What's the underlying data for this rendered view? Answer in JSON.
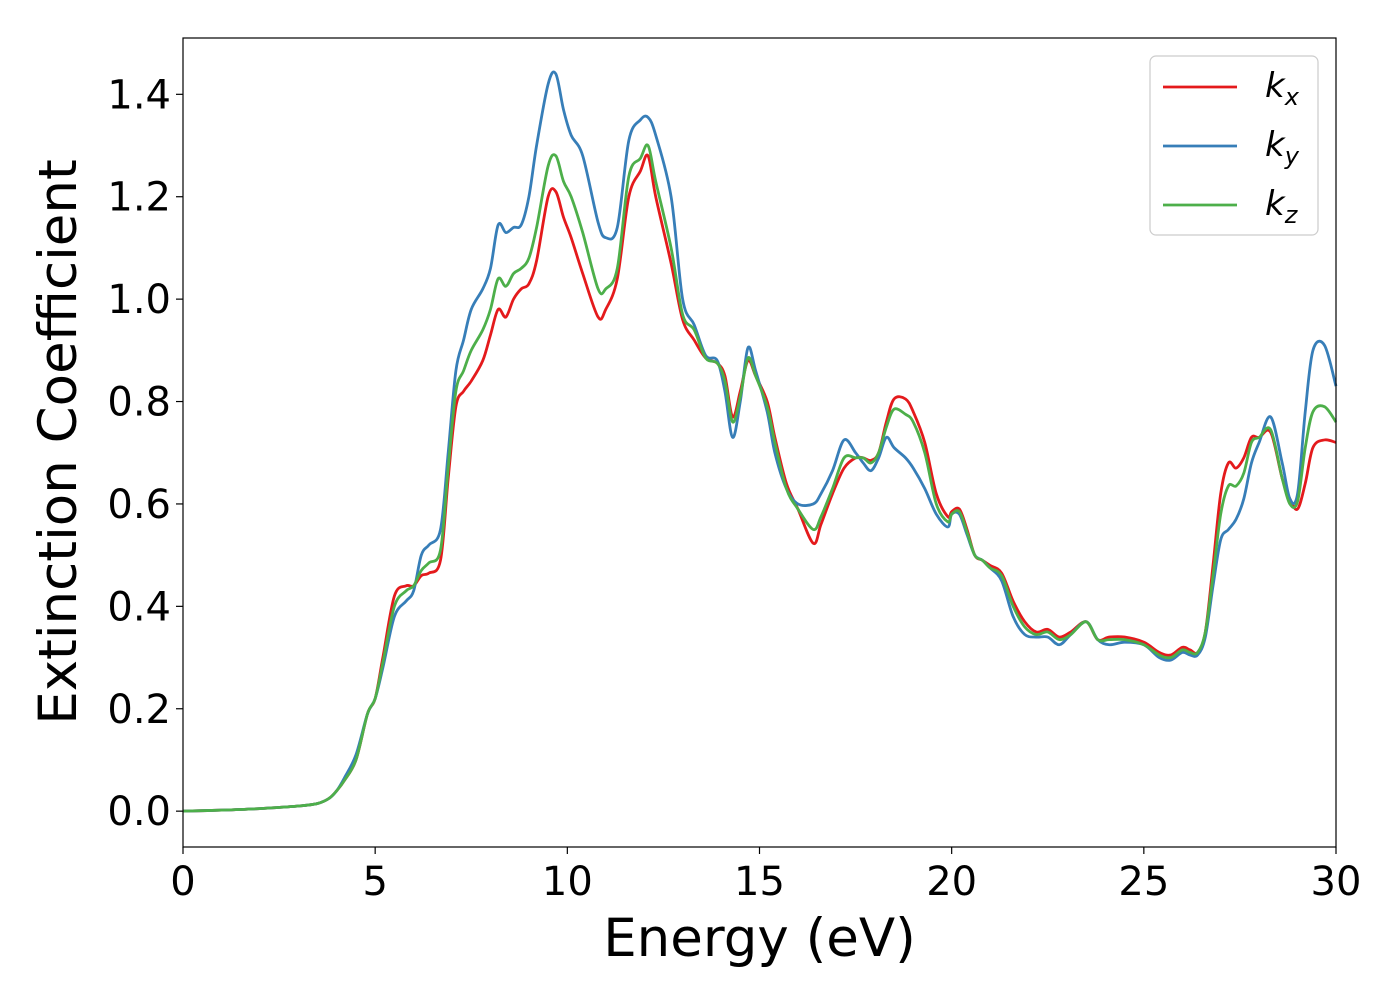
{
  "chart_data": {
    "type": "line",
    "xlabel": "Energy (eV)",
    "ylabel": "Extinction Coefficient",
    "xlim": [
      0,
      30
    ],
    "ylim": [
      -0.07,
      1.51
    ],
    "xticks": [
      "0",
      "5",
      "10",
      "15",
      "20",
      "25",
      "30"
    ],
    "yticks": [
      "0.0",
      "0.2",
      "0.4",
      "0.6",
      "0.8",
      "1.0",
      "1.2",
      "1.4"
    ],
    "grid": false,
    "legend_position": "top-right",
    "series": [
      {
        "name": "k",
        "subscript": "x",
        "color": "#e41a1c",
        "x": [
          0,
          1,
          2,
          3,
          3.5,
          3.8,
          4.0,
          4.2,
          4.5,
          4.8,
          5.0,
          5.2,
          5.5,
          5.8,
          6.0,
          6.2,
          6.4,
          6.7,
          6.9,
          7.1,
          7.3,
          7.5,
          7.8,
          8.0,
          8.2,
          8.4,
          8.6,
          8.8,
          9.0,
          9.2,
          9.5,
          9.7,
          9.9,
          10.1,
          10.4,
          10.8,
          11.0,
          11.3,
          11.6,
          11.9,
          12.1,
          12.3,
          12.7,
          13.0,
          13.3,
          13.6,
          13.9,
          14.1,
          14.3,
          14.5,
          14.7,
          14.9,
          15.2,
          15.4,
          15.7,
          16.0,
          16.4,
          16.6,
          16.9,
          17.2,
          17.5,
          17.7,
          17.9,
          18.1,
          18.3,
          18.5,
          18.8,
          19.0,
          19.3,
          19.6,
          19.9,
          20.0,
          20.2,
          20.4,
          20.6,
          20.8,
          21.0,
          21.3,
          21.6,
          21.9,
          22.2,
          22.5,
          22.8,
          23.1,
          23.5,
          23.8,
          24.1,
          24.5,
          25.0,
          25.4,
          25.7,
          26.0,
          26.2,
          26.4,
          26.6,
          26.8,
          27.0,
          27.2,
          27.4,
          27.6,
          27.8,
          28.0,
          28.3,
          28.6,
          28.8,
          29.0,
          29.2,
          29.4,
          29.7,
          30.0
        ],
        "values": [
          0,
          0.002,
          0.005,
          0.01,
          0.015,
          0.025,
          0.04,
          0.06,
          0.1,
          0.19,
          0.22,
          0.3,
          0.42,
          0.44,
          0.44,
          0.46,
          0.465,
          0.49,
          0.65,
          0.79,
          0.82,
          0.84,
          0.88,
          0.93,
          0.98,
          0.965,
          1.0,
          1.02,
          1.03,
          1.075,
          1.2,
          1.21,
          1.16,
          1.12,
          1.05,
          0.965,
          0.98,
          1.04,
          1.2,
          1.25,
          1.28,
          1.2,
          1.07,
          0.96,
          0.92,
          0.885,
          0.875,
          0.85,
          0.77,
          0.82,
          0.88,
          0.85,
          0.8,
          0.73,
          0.64,
          0.59,
          0.523,
          0.56,
          0.62,
          0.67,
          0.69,
          0.69,
          0.685,
          0.7,
          0.76,
          0.805,
          0.805,
          0.78,
          0.72,
          0.62,
          0.575,
          0.585,
          0.59,
          0.55,
          0.5,
          0.49,
          0.48,
          0.465,
          0.41,
          0.37,
          0.35,
          0.355,
          0.34,
          0.35,
          0.37,
          0.335,
          0.34,
          0.34,
          0.33,
          0.31,
          0.305,
          0.32,
          0.315,
          0.31,
          0.35,
          0.48,
          0.62,
          0.68,
          0.67,
          0.69,
          0.73,
          0.73,
          0.74,
          0.65,
          0.61,
          0.59,
          0.64,
          0.71,
          0.725,
          0.72
        ]
      },
      {
        "name": "k",
        "subscript": "y",
        "color": "#377eb8",
        "x": [
          0,
          1,
          2,
          3,
          3.5,
          3.8,
          4.0,
          4.2,
          4.5,
          4.8,
          5.0,
          5.2,
          5.5,
          5.8,
          6.0,
          6.2,
          6.4,
          6.7,
          6.9,
          7.1,
          7.3,
          7.5,
          7.8,
          8.0,
          8.2,
          8.4,
          8.6,
          8.8,
          9.0,
          9.2,
          9.5,
          9.7,
          9.9,
          10.1,
          10.4,
          10.8,
          11.0,
          11.3,
          11.6,
          11.9,
          12.1,
          12.3,
          12.7,
          13.0,
          13.3,
          13.6,
          13.9,
          14.1,
          14.3,
          14.5,
          14.7,
          14.9,
          15.2,
          15.4,
          15.7,
          16.0,
          16.4,
          16.6,
          16.9,
          17.2,
          17.5,
          17.7,
          17.9,
          18.1,
          18.3,
          18.5,
          18.8,
          19.0,
          19.3,
          19.6,
          19.9,
          20.0,
          20.2,
          20.4,
          20.6,
          20.8,
          21.0,
          21.3,
          21.6,
          21.9,
          22.2,
          22.5,
          22.8,
          23.1,
          23.5,
          23.8,
          24.1,
          24.5,
          25.0,
          25.4,
          25.7,
          26.0,
          26.2,
          26.4,
          26.6,
          26.8,
          27.0,
          27.2,
          27.4,
          27.6,
          27.8,
          28.0,
          28.3,
          28.6,
          28.8,
          29.0,
          29.2,
          29.4,
          29.7,
          30.0
        ],
        "values": [
          0,
          0.002,
          0.005,
          0.01,
          0.015,
          0.025,
          0.04,
          0.065,
          0.11,
          0.19,
          0.22,
          0.28,
          0.38,
          0.41,
          0.43,
          0.5,
          0.52,
          0.55,
          0.7,
          0.86,
          0.92,
          0.98,
          1.02,
          1.06,
          1.145,
          1.13,
          1.14,
          1.145,
          1.2,
          1.3,
          1.42,
          1.44,
          1.37,
          1.32,
          1.28,
          1.15,
          1.12,
          1.14,
          1.31,
          1.35,
          1.355,
          1.32,
          1.2,
          1.0,
          0.95,
          0.89,
          0.88,
          0.82,
          0.73,
          0.8,
          0.905,
          0.86,
          0.78,
          0.7,
          0.63,
          0.6,
          0.6,
          0.62,
          0.665,
          0.725,
          0.7,
          0.68,
          0.665,
          0.69,
          0.73,
          0.71,
          0.69,
          0.67,
          0.63,
          0.58,
          0.555,
          0.58,
          0.58,
          0.54,
          0.5,
          0.49,
          0.475,
          0.45,
          0.38,
          0.345,
          0.34,
          0.34,
          0.325,
          0.345,
          0.37,
          0.335,
          0.325,
          0.33,
          0.325,
          0.3,
          0.295,
          0.31,
          0.305,
          0.305,
          0.34,
          0.44,
          0.53,
          0.55,
          0.57,
          0.61,
          0.68,
          0.72,
          0.77,
          0.68,
          0.61,
          0.62,
          0.78,
          0.9,
          0.91,
          0.83
        ]
      },
      {
        "name": "k",
        "subscript": "z",
        "color": "#4daf4a",
        "x": [
          0,
          1,
          2,
          3,
          3.5,
          3.8,
          4.0,
          4.2,
          4.5,
          4.8,
          5.0,
          5.2,
          5.5,
          5.8,
          6.0,
          6.2,
          6.4,
          6.7,
          6.9,
          7.1,
          7.3,
          7.5,
          7.8,
          8.0,
          8.2,
          8.4,
          8.6,
          8.8,
          9.0,
          9.2,
          9.5,
          9.7,
          9.9,
          10.1,
          10.4,
          10.8,
          11.0,
          11.3,
          11.6,
          11.9,
          12.1,
          12.3,
          12.7,
          13.0,
          13.3,
          13.6,
          13.9,
          14.1,
          14.3,
          14.5,
          14.7,
          14.9,
          15.2,
          15.4,
          15.7,
          16.0,
          16.4,
          16.6,
          16.9,
          17.2,
          17.5,
          17.7,
          17.9,
          18.1,
          18.3,
          18.5,
          18.8,
          19.0,
          19.3,
          19.6,
          19.9,
          20.0,
          20.2,
          20.4,
          20.6,
          20.8,
          21.0,
          21.3,
          21.6,
          21.9,
          22.2,
          22.5,
          22.8,
          23.1,
          23.5,
          23.8,
          24.1,
          24.5,
          25.0,
          25.4,
          25.7,
          26.0,
          26.2,
          26.4,
          26.6,
          26.8,
          27.0,
          27.2,
          27.4,
          27.6,
          27.8,
          28.0,
          28.3,
          28.6,
          28.8,
          29.0,
          29.2,
          29.4,
          29.7,
          30.0
        ],
        "values": [
          0,
          0.002,
          0.005,
          0.01,
          0.015,
          0.025,
          0.04,
          0.06,
          0.1,
          0.19,
          0.22,
          0.29,
          0.4,
          0.43,
          0.44,
          0.47,
          0.485,
          0.51,
          0.67,
          0.82,
          0.86,
          0.9,
          0.94,
          0.98,
          1.04,
          1.025,
          1.05,
          1.06,
          1.08,
          1.14,
          1.26,
          1.28,
          1.23,
          1.2,
          1.13,
          1.02,
          1.02,
          1.06,
          1.24,
          1.275,
          1.3,
          1.23,
          1.1,
          0.97,
          0.94,
          0.885,
          0.875,
          0.84,
          0.76,
          0.81,
          0.885,
          0.85,
          0.79,
          0.72,
          0.63,
          0.59,
          0.55,
          0.575,
          0.63,
          0.69,
          0.69,
          0.69,
          0.68,
          0.7,
          0.75,
          0.785,
          0.775,
          0.76,
          0.7,
          0.6,
          0.565,
          0.58,
          0.585,
          0.545,
          0.5,
          0.49,
          0.475,
          0.46,
          0.4,
          0.36,
          0.345,
          0.35,
          0.335,
          0.345,
          0.37,
          0.335,
          0.335,
          0.335,
          0.325,
          0.305,
          0.3,
          0.315,
          0.31,
          0.31,
          0.35,
          0.46,
          0.58,
          0.635,
          0.635,
          0.66,
          0.72,
          0.73,
          0.745,
          0.65,
          0.6,
          0.605,
          0.71,
          0.78,
          0.79,
          0.76
        ]
      }
    ]
  }
}
